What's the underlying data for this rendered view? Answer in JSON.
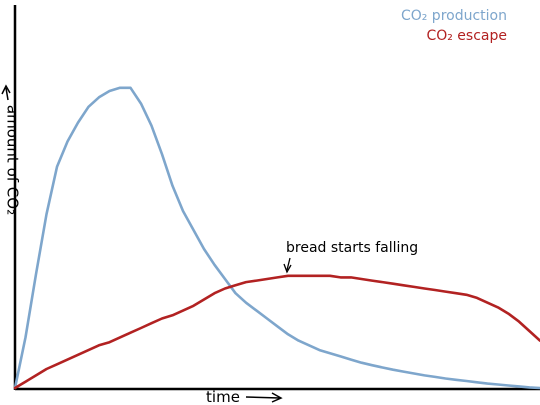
{
  "chart_data": {
    "type": "line",
    "xlabel": "time",
    "ylabel": "amount of CO₂",
    "grid": false,
    "legend_position": "top-right",
    "xlim": [
      0,
      100
    ],
    "ylim": [
      0,
      100
    ],
    "series": [
      {
        "name": "CO₂ production",
        "color": "#7ea6cc",
        "x": [
          0,
          2,
          4,
          6,
          8,
          10,
          12,
          14,
          16,
          18,
          20,
          22,
          24,
          26,
          28,
          30,
          32,
          34,
          36,
          38,
          40,
          42,
          44,
          46,
          48,
          50,
          52,
          54,
          56,
          58,
          60,
          62,
          64,
          66,
          68,
          70,
          72,
          74,
          76,
          78,
          80,
          82,
          84,
          86,
          88,
          90,
          92,
          94,
          96,
          98,
          100
        ],
        "y": [
          0,
          16,
          36,
          55,
          70,
          78,
          84,
          89,
          92,
          94,
          95,
          95,
          90,
          83,
          74,
          64,
          56,
          50,
          44,
          39,
          34.5,
          30,
          27,
          24.5,
          22,
          19.5,
          17,
          15,
          13.5,
          12,
          11,
          10,
          9,
          8,
          7.2,
          6.5,
          5.8,
          5.2,
          4.6,
          4,
          3.5,
          3,
          2.6,
          2.2,
          1.8,
          1.4,
          1.1,
          0.8,
          0.5,
          0.2,
          0
        ]
      },
      {
        "name": "CO₂ escape",
        "color": "#b22222",
        "x": [
          0,
          2,
          4,
          6,
          8,
          10,
          12,
          14,
          16,
          18,
          20,
          22,
          24,
          26,
          28,
          30,
          32,
          34,
          36,
          38,
          40,
          42,
          44,
          46,
          48,
          50,
          52,
          54,
          56,
          58,
          60,
          62,
          64,
          66,
          68,
          70,
          72,
          74,
          76,
          78,
          80,
          82,
          84,
          86,
          88,
          90,
          92,
          94,
          96,
          98,
          100
        ],
        "y": [
          0,
          2,
          4,
          6,
          7.5,
          9,
          10.5,
          12,
          13.5,
          14.5,
          16,
          17.5,
          19,
          20.5,
          22,
          23,
          24.5,
          26,
          28,
          30,
          31.5,
          32.5,
          33.5,
          34,
          34.5,
          35,
          35.5,
          35.5,
          35.5,
          35.5,
          35.5,
          35,
          35,
          34.5,
          34,
          33.5,
          33,
          32.5,
          32,
          31.5,
          31,
          30.5,
          30,
          29.5,
          28.5,
          27,
          25.5,
          23.5,
          21,
          18,
          15
        ]
      }
    ],
    "annotations": [
      {
        "text": "bread starts falling",
        "x": 51.5,
        "y": 35
      }
    ]
  }
}
